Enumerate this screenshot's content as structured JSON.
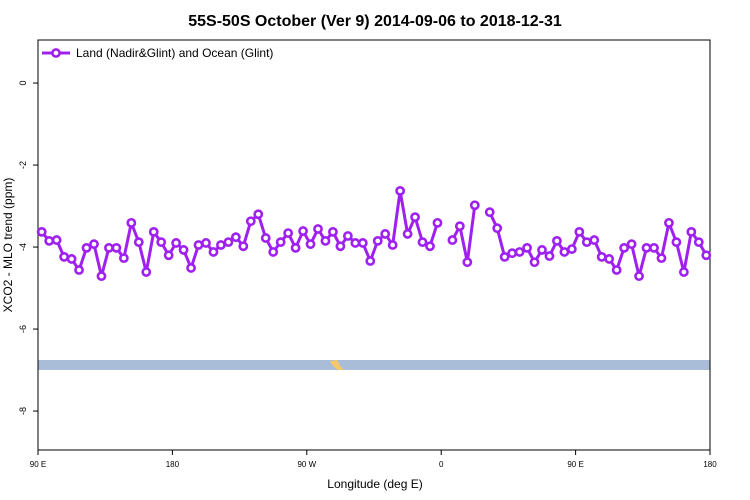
{
  "chart_data": {
    "type": "line",
    "title": "55S-50S October (Ver 9)   2014-09-06 to 2018-12-31",
    "xlabel": "Longitude (deg E)",
    "ylabel": "XCO2 - MLO trend (ppm)",
    "x": [
      92.5,
      97.5,
      102.5,
      107.5,
      112.5,
      117.5,
      122.5,
      127.5,
      132.5,
      137.5,
      142.5,
      147.5,
      152.5,
      157.5,
      162.5,
      167.5,
      172.5,
      177.5,
      182.5,
      187.5,
      192.5,
      197.5,
      202.5,
      207.5,
      212.5,
      217.5,
      222.5,
      227.5,
      232.5,
      237.5,
      242.5,
      247.5,
      252.5,
      257.5,
      262.5,
      267.5,
      272.5,
      277.5,
      282.5,
      287.5,
      292.5,
      297.5,
      302.5,
      307.5,
      312.5,
      317.5,
      322.5,
      327.5,
      332.5,
      337.5,
      342.5,
      347.5,
      352.5,
      357.5,
      362.5,
      367.5,
      372.5,
      377.5,
      382.5,
      387.5,
      392.5,
      397.5,
      402.5,
      407.5,
      412.5,
      417.5,
      422.5,
      427.5,
      432.5,
      437.5,
      442.5,
      447.5,
      452.5,
      457.5,
      462.5,
      467.5,
      472.5,
      477.5,
      482.5,
      487.5,
      492.5,
      497.5,
      502.5,
      507.5,
      512.5,
      517.5,
      522.5,
      527.5,
      532.5,
      537.5
    ],
    "series": [
      {
        "name": "Land (Nadir&Glint) and Ocean (Glint)",
        "color": "#a020f0",
        "values": [
          -3.63,
          -3.85,
          -3.83,
          -4.24,
          -4.29,
          -4.56,
          -4.02,
          -3.93,
          -4.71,
          -4.02,
          -4.02,
          -4.27,
          -3.41,
          -3.88,
          -4.61,
          -3.63,
          -3.88,
          -4.2,
          -3.9,
          -4.07,
          -4.51,
          -3.95,
          -3.9,
          -4.12,
          -3.95,
          -3.88,
          -3.76,
          -3.98,
          -3.37,
          -3.2,
          -3.78,
          -4.12,
          -3.88,
          -3.66,
          -4.02,
          -3.61,
          -3.93,
          -3.56,
          -3.85,
          -3.63,
          -3.98,
          -3.73,
          -3.9,
          -3.9,
          -4.34,
          -3.85,
          -3.68,
          -3.95,
          -2.63,
          -3.68,
          -3.27,
          -3.88,
          -3.98,
          -3.41,
          null,
          -3.83,
          -3.49,
          -4.37,
          -2.98,
          null,
          -3.15,
          -3.54,
          -4.24,
          -4.15,
          -4.12,
          -4.02,
          -4.37,
          -4.07,
          -4.22,
          -3.85,
          -4.12,
          -4.05,
          -3.63,
          -3.88,
          -3.83,
          -4.24,
          -4.29,
          -4.56,
          -4.02,
          -3.93,
          -4.71,
          -4.02,
          -4.02,
          -4.27,
          -3.41,
          -3.88,
          -4.61,
          -3.63,
          -3.88,
          -4.2
        ]
      }
    ],
    "xlim": [
      90,
      540
    ],
    "xticks": [
      {
        "value": 90,
        "label": "90 E"
      },
      180,
      {
        "value": 270,
        "label": "90 W"
      },
      {
        "value": 360,
        "label": "0"
      },
      {
        "value": 450,
        "label": "90 E"
      },
      {
        "value": 540,
        "label": "180"
      }
    ],
    "ylim": [
      -8.95,
      1.05
    ],
    "yticks": [
      0,
      -2,
      -4,
      -6,
      -8
    ],
    "legend": "upper left"
  }
}
